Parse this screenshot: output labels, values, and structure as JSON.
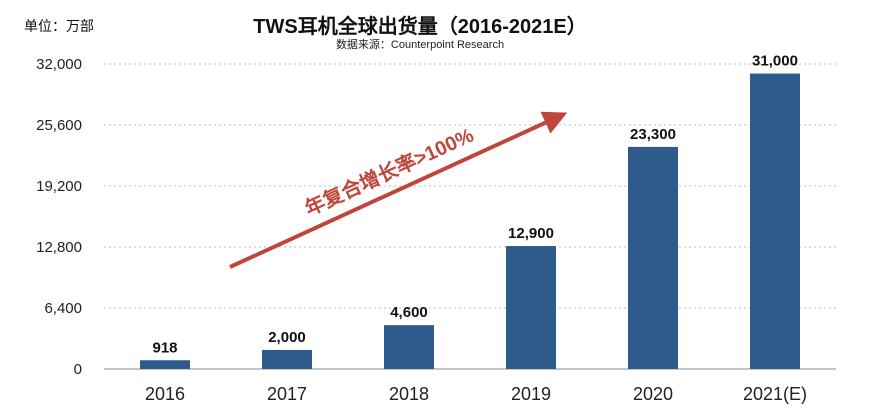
{
  "chart_data": {
    "type": "bar",
    "title": "TWS耳机全球出货量（2016-2021E）",
    "subtitle": "数据来源：Counterpoint Research",
    "unit_label": "单位：万部",
    "categories": [
      "2016",
      "2017",
      "2018",
      "2019",
      "2020",
      "2021(E)"
    ],
    "values": [
      918,
      2000,
      4600,
      12900,
      23300,
      31000
    ],
    "value_labels": [
      "918",
      "2,000",
      "4,600",
      "12,900",
      "23,300",
      "31,000"
    ],
    "y_ticks": [
      0,
      6400,
      12800,
      19200,
      25600,
      32000
    ],
    "y_tick_labels": [
      "0",
      "6,400",
      "12,800",
      "19,200",
      "25,600",
      "32,000"
    ],
    "ylim": [
      0,
      32000
    ],
    "grid": true,
    "annotation": "年复合增长率>100%",
    "colors": {
      "bar": "#2f5a8c",
      "arrow": "#c0463c",
      "grid": "#bdbdbd",
      "axis": "#888888"
    }
  }
}
